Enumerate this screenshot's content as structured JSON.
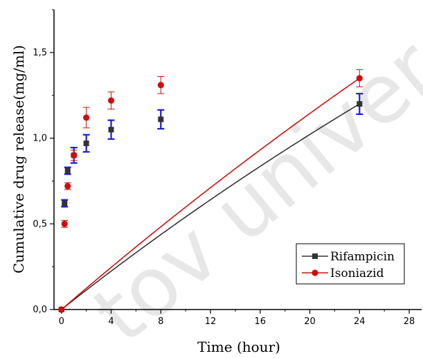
{
  "chart_data": {
    "type": "line",
    "title": "",
    "xlabel": "Time (hour)",
    "ylabel": "Cumulative drug release(mg/ml)",
    "xlim": [
      -0.6,
      29
    ],
    "ylim": [
      0,
      1.75
    ],
    "xticks": [
      0,
      4,
      8,
      12,
      16,
      20,
      24,
      28
    ],
    "yticks": [
      0,
      0.5,
      1.0,
      1.5
    ],
    "ytick_labels": [
      "0,0",
      "0,5",
      "1,0",
      "1,5"
    ],
    "grid": false,
    "legend_position": "bottom-right",
    "watermark": "tov univer",
    "series": [
      {
        "name": "Rifampicin",
        "color": "#333333",
        "errorbar_color": "#1a1adb",
        "marker": "square",
        "x": [
          0,
          0.25,
          0.5,
          1,
          2,
          4,
          8,
          24
        ],
        "y": [
          0,
          0.62,
          0.81,
          0.9,
          0.97,
          1.05,
          1.11,
          1.2
        ],
        "error": [
          0,
          0.02,
          0.02,
          0.045,
          0.05,
          0.055,
          0.055,
          0.06
        ],
        "fit": "hyperbolic"
      },
      {
        "name": "Isoniazid",
        "color": "#cc1010",
        "errorbar_color": "#cc1010",
        "marker": "circle",
        "x": [
          0,
          0.25,
          0.5,
          1,
          2,
          4,
          8,
          24
        ],
        "y": [
          0,
          0.5,
          0.72,
          0.9,
          1.12,
          1.22,
          1.31,
          1.35
        ],
        "error": [
          0,
          0.02,
          0.02,
          0.03,
          0.06,
          0.05,
          0.05,
          0.05
        ],
        "fit": "hyperbolic"
      }
    ]
  }
}
